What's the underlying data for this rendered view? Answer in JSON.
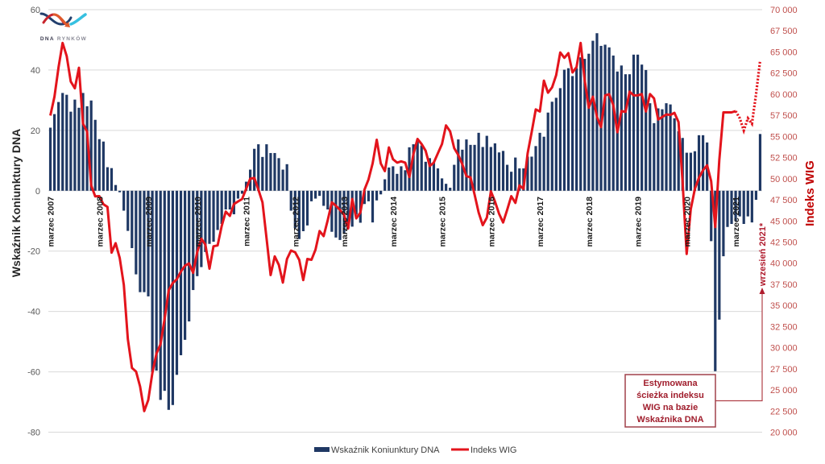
{
  "logo": {
    "text_dna": "DNA",
    "text_rynkow": "RYNKÓW"
  },
  "chart_data": {
    "type": "bar+line",
    "grid": true,
    "legend_position": "bottom",
    "left_axis": {
      "label": "Wskaźnik Koniunktury DNA",
      "ylim": [
        -80,
        60
      ],
      "ticks": [
        60,
        40,
        20,
        0,
        -20,
        -40,
        -60,
        -80
      ],
      "tick_labels": [
        "60",
        "40",
        "20",
        "0",
        "-20",
        "-40",
        "-60",
        "-80"
      ]
    },
    "right_axis": {
      "label": "Indeks WIG",
      "ylim": [
        20000,
        70000
      ],
      "ticks": [
        70000,
        67500,
        65000,
        62500,
        60000,
        57500,
        55000,
        52500,
        50000,
        47500,
        45000,
        42500,
        40000,
        37500,
        35000,
        32500,
        30000,
        27500,
        25000,
        22500,
        20000
      ],
      "tick_labels": [
        "70 000",
        "67 500",
        "65 000",
        "62 500",
        "60 000",
        "57 500",
        "55 000",
        "52 500",
        "50 000",
        "47 500",
        "45 000",
        "42 500",
        "40 000",
        "37 500",
        "35 000",
        "32 500",
        "30 000",
        "27 500",
        "25 000",
        "22 500",
        "20 000"
      ]
    },
    "x_axis": {
      "months_per_tick": 12,
      "tick_labels": [
        "marzec 2007",
        "marzec 2008",
        "marzec 2009",
        "marzec 2010",
        "marzec 2011",
        "marzec 2012",
        "marzec 2013",
        "marzec 2014",
        "marzec 2015",
        "marzec 2016",
        "marzec 2017",
        "marzec 2018",
        "marzec 2019",
        "marzec 2020",
        "marzec 2021"
      ]
    },
    "series": [
      {
        "name": "Wskaźnik Koniunktury DNA",
        "type": "bar",
        "axis": "left",
        "color": "#1f3864",
        "values": [
          20.9,
          25.4,
          29.4,
          32.4,
          31.8,
          26.2,
          30.2,
          27.5,
          32.4,
          28,
          29.9,
          23.5,
          17.1,
          16.3,
          7.8,
          7.5,
          1.9,
          -0.5,
          -6.6,
          -13.3,
          -19,
          -27.7,
          -33.6,
          -33.6,
          -35,
          -60,
          -59.6,
          -69.3,
          -66.3,
          -72.6,
          -71,
          -61,
          -54.5,
          -49.4,
          -43.3,
          -32.9,
          -28.3,
          -25.3,
          -20.3,
          -17.6,
          -16.9,
          -13,
          -11,
          -6.2,
          -6.2,
          -7.8,
          -2.6,
          -1,
          3,
          7,
          13.9,
          15.4,
          11.2,
          15.4,
          12.5,
          12.5,
          10.8,
          7,
          8.8,
          -6.6,
          -12.4,
          -16,
          -13.4,
          -11.5,
          -3.5,
          -2.6,
          -1.7,
          -5,
          -6.2,
          -13.6,
          -15.5,
          -16.3,
          -14.2,
          -12.4,
          -11.9,
          -7.9,
          -10.6,
          -4.4,
          -3.5,
          -10.5,
          -3.2,
          -1.2,
          3.8,
          7.7,
          8.1,
          5.6,
          8.1,
          6.8,
          14.4,
          15.4,
          16.3,
          15,
          9.6,
          10.8,
          9.4,
          7.4,
          4.1,
          2.3,
          1,
          8.6,
          17,
          13.6,
          17,
          15.2,
          15.2,
          19.2,
          14.5,
          18.2,
          14.5,
          15.7,
          12.7,
          13.2,
          8.6,
          6.3,
          11,
          7.4,
          7.4,
          11.3,
          11.3,
          14.8,
          19.2,
          17.9,
          25.9,
          29.5,
          30.8,
          34,
          40.1,
          40.6,
          38,
          40.6,
          44.2,
          43.7,
          45.4,
          49.7,
          52.2,
          48,
          48.4,
          47.5,
          44.8,
          39.5,
          41.5,
          38.6,
          38.6,
          45.1,
          45.1,
          41.8,
          40,
          29,
          22.4,
          27.3,
          27,
          29,
          28.6,
          24,
          19.7,
          17.5,
          12.6,
          12.6,
          13.1,
          18.4,
          18.4,
          16,
          -16.7,
          -59.8,
          -42.7,
          -21.7,
          -12,
          -11,
          -10,
          -8.5,
          -11,
          -8.5,
          -10.5,
          -3,
          18.8
        ]
      },
      {
        "name": "Indeks WIG",
        "type": "line",
        "axis": "right",
        "color": "#e3141c",
        "values": [
          57470,
          59700,
          63200,
          66060,
          64500,
          61500,
          60700,
          63130,
          56520,
          55560,
          49200,
          47900,
          47930,
          46980,
          46650,
          41250,
          42360,
          40610,
          37430,
          31000,
          27600,
          27180,
          25400,
          22500,
          23800,
          27000,
          29300,
          30400,
          33400,
          36800,
          37650,
          38100,
          39000,
          39700,
          39970,
          38860,
          41300,
          42900,
          42200,
          39350,
          42000,
          42100,
          44400,
          46100,
          45600,
          47000,
          47300,
          47600,
          48800,
          50000,
          50090,
          48700,
          47200,
          42900,
          38600,
          40800,
          39800,
          37700,
          40500,
          41500,
          41300,
          40400,
          38000,
          40500,
          40400,
          41600,
          43800,
          43200,
          45100,
          47200,
          46800,
          46300,
          45700,
          44100,
          47600,
          45300,
          46000,
          48700,
          49900,
          51800,
          54600,
          51800,
          50900,
          53700,
          52300,
          51900,
          52050,
          51900,
          50200,
          52900,
          54700,
          54100,
          53300,
          51500,
          51900,
          53000,
          54100,
          56300,
          55600,
          53600,
          52800,
          51700,
          50300,
          50150,
          48100,
          46000,
          44500,
          45400,
          48500,
          47290,
          45860,
          44810,
          46340,
          47930,
          47130,
          49200,
          48800,
          53000,
          55500,
          58200,
          57950,
          61600,
          60170,
          60810,
          62240,
          64940,
          64300,
          64850,
          62560,
          63200,
          66060,
          61600,
          58400,
          59700,
          57300,
          56100,
          59860,
          60000,
          58700,
          55500,
          58000,
          57900,
          60300,
          59860,
          59860,
          60010,
          57950,
          60010,
          59500,
          57000,
          57300,
          57600,
          57550,
          57790,
          56700,
          49500,
          41100,
          46400,
          48800,
          50100,
          51000,
          51580,
          49700,
          44270,
          52200,
          57850,
          57850,
          57850,
          58000
        ]
      },
      {
        "type": "line",
        "dashed": true,
        "axis": "right",
        "color": "#e3141c",
        "start_index": 168,
        "values": [
          58000,
          57150,
          55700,
          57150,
          56500,
          60000,
          64000
        ]
      }
    ],
    "annotations": {
      "box_lines": [
        "Estymowana",
        "ścieżka indeksu",
        "WIG na bazie",
        "Wskaźnika DNA"
      ],
      "target_label": "wrzesień 2021*",
      "color": "#a01d2c"
    }
  }
}
